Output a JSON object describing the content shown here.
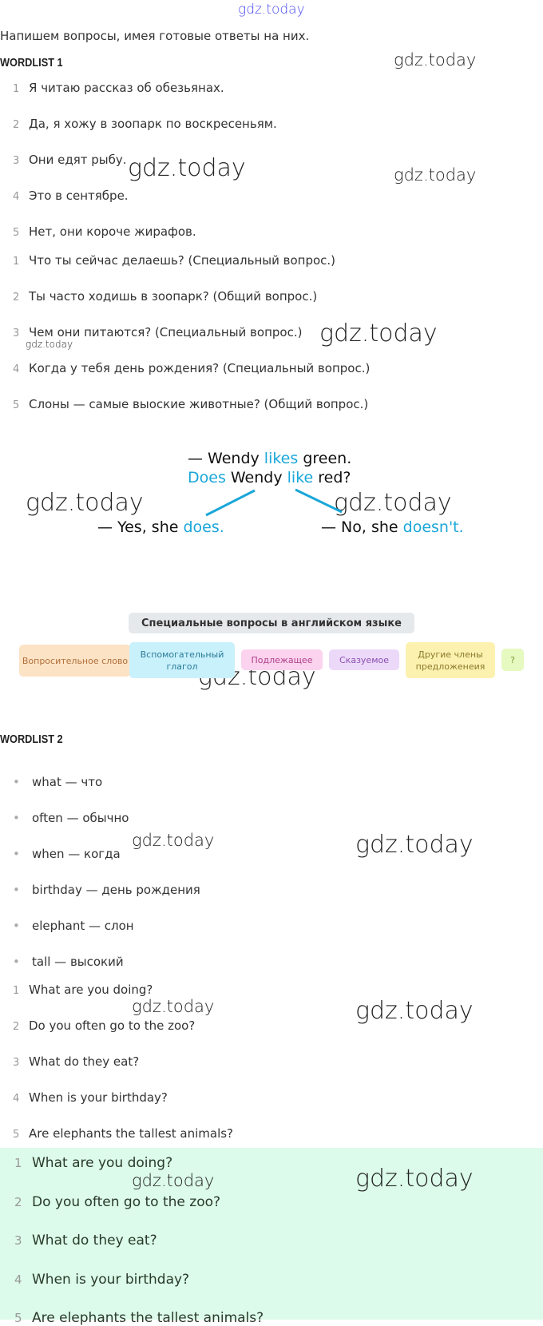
{
  "watermark": "gdz.today",
  "intro": "Напишем вопросы, имея готовые ответы на них.",
  "wordlist1": {
    "title": "WORDLIST 1",
    "answers": [
      {
        "n": "1",
        "text": "Я читаю рассказ об обезьянах."
      },
      {
        "n": "2",
        "text": "Да, я хожу в зоопарк по воскресеньям."
      },
      {
        "n": "3",
        "text": "Они едят рыбу."
      },
      {
        "n": "4",
        "text": "Это в сентябре."
      },
      {
        "n": "5",
        "text": "Нет, они короче жирафов."
      }
    ],
    "questions": [
      {
        "n": "1",
        "text": "Что ты сейчас делаешь? (Специальный вопрос.)"
      },
      {
        "n": "2",
        "text": "Ты часто ходишь в зоопарк? (Общий вопрос.)"
      },
      {
        "n": "3",
        "text": "Чем они питаются? (Специальный вопрос.)"
      },
      {
        "n": "4",
        "text": "Когда у тебя день рождения? (Специальный вопрос.)"
      },
      {
        "n": "5",
        "text": "Слоны — самые выоские животные? (Общий вопрос.)"
      }
    ]
  },
  "diagram": {
    "line1": {
      "a": "— Wendy ",
      "b": "likes",
      "c": " green."
    },
    "line2": {
      "a": "Does",
      "b": " Wendy ",
      "c": "like",
      "d": " red?"
    },
    "yes": {
      "a": "— Yes, she ",
      "b": "does."
    },
    "no": {
      "a": "— No, she ",
      "b": "doesn't."
    },
    "accent": "#1aa7d9"
  },
  "special": {
    "title": "Специальные вопросы в английском языке",
    "chips": [
      {
        "label": "Вопросительное слово",
        "bg": "#fde3c6",
        "color": "#b0703a"
      },
      {
        "label": "Вспомогательный глагол",
        "bg": "#c9f1fb",
        "color": "#2a7a9a"
      },
      {
        "label": "Подлежащее",
        "bg": "#fbd3ee",
        "color": "#b0408a"
      },
      {
        "label": "Сказуемое",
        "bg": "#ecd9fa",
        "color": "#8a50b0"
      },
      {
        "label": "Другие члены предложенеия",
        "bg": "#fdf1b0",
        "color": "#8a7a2a"
      },
      {
        "label": "?",
        "bg": "#e6f9c0",
        "color": "#7a9a3a"
      }
    ]
  },
  "wordlist2": {
    "title": "WORDLIST 2",
    "words": [
      "what — что",
      "often — обычно",
      "when — когда",
      "birthday — день рождения",
      "elephant — слон",
      "tall — высокий"
    ],
    "questions": [
      {
        "n": "1",
        "text": "What are you doing?"
      },
      {
        "n": "2",
        "text": "Do you often go to the zoo?"
      },
      {
        "n": "3",
        "text": "What do they eat?"
      },
      {
        "n": "4",
        "text": "When is your birthday?"
      },
      {
        "n": "5",
        "text": "Are elephants the tallest animals?"
      }
    ]
  },
  "answer_box": {
    "bg": "#dcfbea",
    "questions": [
      {
        "n": "1",
        "text": "What are you doing?"
      },
      {
        "n": "2",
        "text": "Do you often go to the zoo?"
      },
      {
        "n": "3",
        "text": "What do they eat?"
      },
      {
        "n": "4",
        "text": "When is your birthday?"
      },
      {
        "n": "5",
        "text": "Are elephants the tallest animals?"
      }
    ]
  }
}
